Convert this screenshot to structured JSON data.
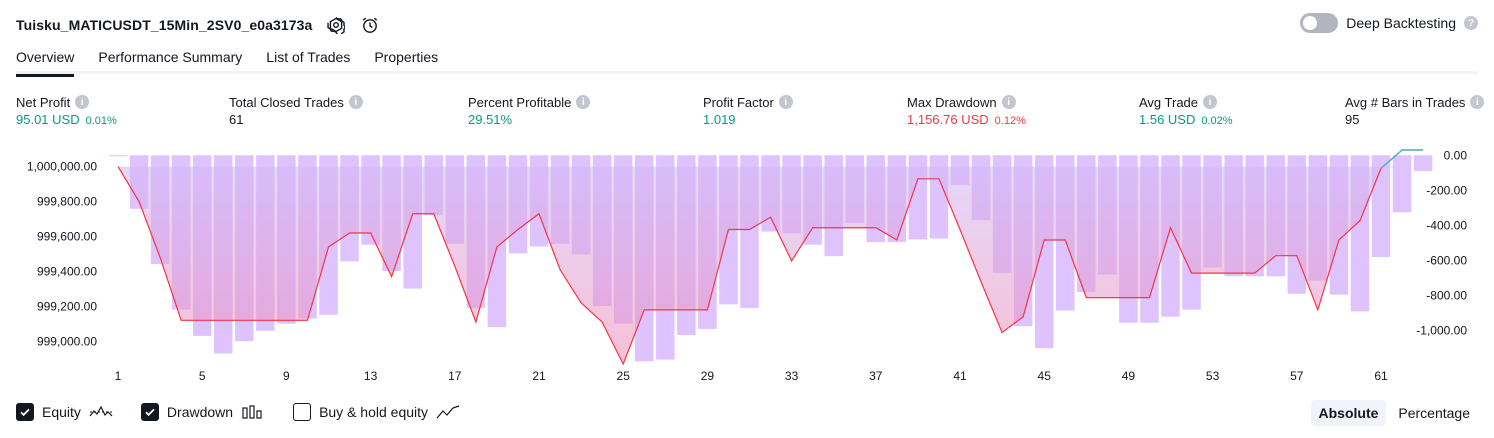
{
  "header": {
    "title": "Tuisku_MATICUSDT_15Min_2SV0_e0a3173a",
    "deep_backtesting_label": "Deep Backtesting",
    "help_glyph": "?"
  },
  "tabs": [
    "Overview",
    "Performance Summary",
    "List of Trades",
    "Properties"
  ],
  "metrics": [
    {
      "label": "Net Profit",
      "value": "95.01 USD",
      "pct": "0.01%",
      "color": "green"
    },
    {
      "label": "Total Closed Trades",
      "value": "61",
      "pct": "",
      "color": "dark"
    },
    {
      "label": "Percent Profitable",
      "value": "29.51%",
      "pct": "",
      "color": "green"
    },
    {
      "label": "Profit Factor",
      "value": "1.019",
      "pct": "",
      "color": "green"
    },
    {
      "label": "Max Drawdown",
      "value": "1,156.76 USD",
      "pct": "0.12%",
      "color": "red"
    },
    {
      "label": "Avg Trade",
      "value": "1.56 USD",
      "pct": "0.02%",
      "color": "green"
    },
    {
      "label": "Avg # Bars in Trades",
      "value": "95",
      "pct": "",
      "color": "dark"
    }
  ],
  "legend": {
    "equity": "Equity",
    "drawdown": "Drawdown",
    "buyhold": "Buy & hold equity"
  },
  "mode": {
    "absolute": "Absolute",
    "percentage": "Percentage"
  },
  "colors": {
    "equity_line": "#f23645",
    "drawdown_bar": "#d9b8ff",
    "equity_fill_top": "#d1b6f5",
    "equity_fill_bottom": "#f08cb4",
    "profit_segment": "#5bb3c6"
  },
  "chart_data": {
    "type": "line",
    "x_ticks": [
      "1",
      "5",
      "9",
      "13",
      "17",
      "21",
      "25",
      "29",
      "33",
      "37",
      "41",
      "45",
      "49",
      "53",
      "57",
      "61"
    ],
    "y_left_ticks": [
      "1,000,000.00",
      "999,800.00",
      "999,600.00",
      "999,400.00",
      "999,200.00",
      "999,000.00"
    ],
    "y_right_ticks": [
      "0.00",
      "-200.00",
      "-400.00",
      "-600.00",
      "-800.00",
      "-1,000.00"
    ],
    "ylim_left": [
      998870,
      1000095
    ],
    "ylim_right": [
      -1190,
      30
    ],
    "series": [
      {
        "name": "Equity",
        "x": [
          1,
          2,
          3,
          4,
          5,
          6,
          7,
          8,
          9,
          10,
          11,
          12,
          13,
          14,
          15,
          16,
          17,
          18,
          19,
          20,
          21,
          22,
          23,
          24,
          25,
          26,
          27,
          28,
          29,
          30,
          31,
          32,
          33,
          34,
          35,
          36,
          37,
          38,
          39,
          40,
          41,
          42,
          43,
          44,
          45,
          46,
          47,
          48,
          49,
          50,
          51,
          52,
          53,
          54,
          55,
          56,
          57,
          58,
          59,
          60,
          61,
          62,
          63
        ],
        "values": [
          1000000,
          999800,
          999480,
          999120,
          999120,
          999120,
          999120,
          999120,
          999120,
          999120,
          999540,
          999620,
          999620,
          999370,
          999730,
          999730,
          999430,
          999110,
          999540,
          999640,
          999730,
          999410,
          999220,
          999110,
          998870,
          999180,
          999180,
          999180,
          999180,
          999640,
          999640,
          999710,
          999460,
          999650,
          999650,
          999650,
          999650,
          999580,
          999930,
          999930,
          999640,
          999340,
          999050,
          999140,
          999580,
          999580,
          999250,
          999250,
          999250,
          999250,
          999650,
          999390,
          999390,
          999390,
          999390,
          999490,
          999490,
          999180,
          999580,
          999690,
          999990,
          1000095,
          1000095
        ]
      },
      {
        "name": "Drawdown",
        "x": [
          1,
          2,
          3,
          4,
          5,
          6,
          7,
          8,
          9,
          10,
          11,
          12,
          13,
          14,
          15,
          16,
          17,
          18,
          19,
          20,
          21,
          22,
          23,
          24,
          25,
          26,
          27,
          28,
          29,
          30,
          31,
          32,
          33,
          34,
          35,
          36,
          37,
          38,
          39,
          40,
          41,
          42,
          43,
          44,
          45,
          46,
          47,
          48,
          49,
          50,
          51,
          52,
          53,
          54,
          55,
          56,
          57,
          58,
          59,
          60,
          61,
          62,
          63
        ],
        "values": [
          0,
          -305,
          -620,
          -880,
          -1030,
          -1130,
          -1060,
          -1000,
          -960,
          -930,
          -910,
          -605,
          -510,
          -660,
          -760,
          -340,
          -505,
          -870,
          -980,
          -560,
          -520,
          -505,
          -565,
          -860,
          -960,
          -1175,
          -1165,
          -1025,
          -990,
          -850,
          -870,
          -435,
          -445,
          -510,
          -575,
          -385,
          -495,
          -495,
          -480,
          -475,
          -170,
          -370,
          -670,
          -975,
          -1100,
          -885,
          -780,
          -680,
          -955,
          -955,
          -920,
          -880,
          -640,
          -690,
          -690,
          -690,
          -790,
          -715,
          -795,
          -890,
          -580,
          -325,
          -90
        ]
      }
    ],
    "xlabel": "",
    "ylabel": ""
  }
}
